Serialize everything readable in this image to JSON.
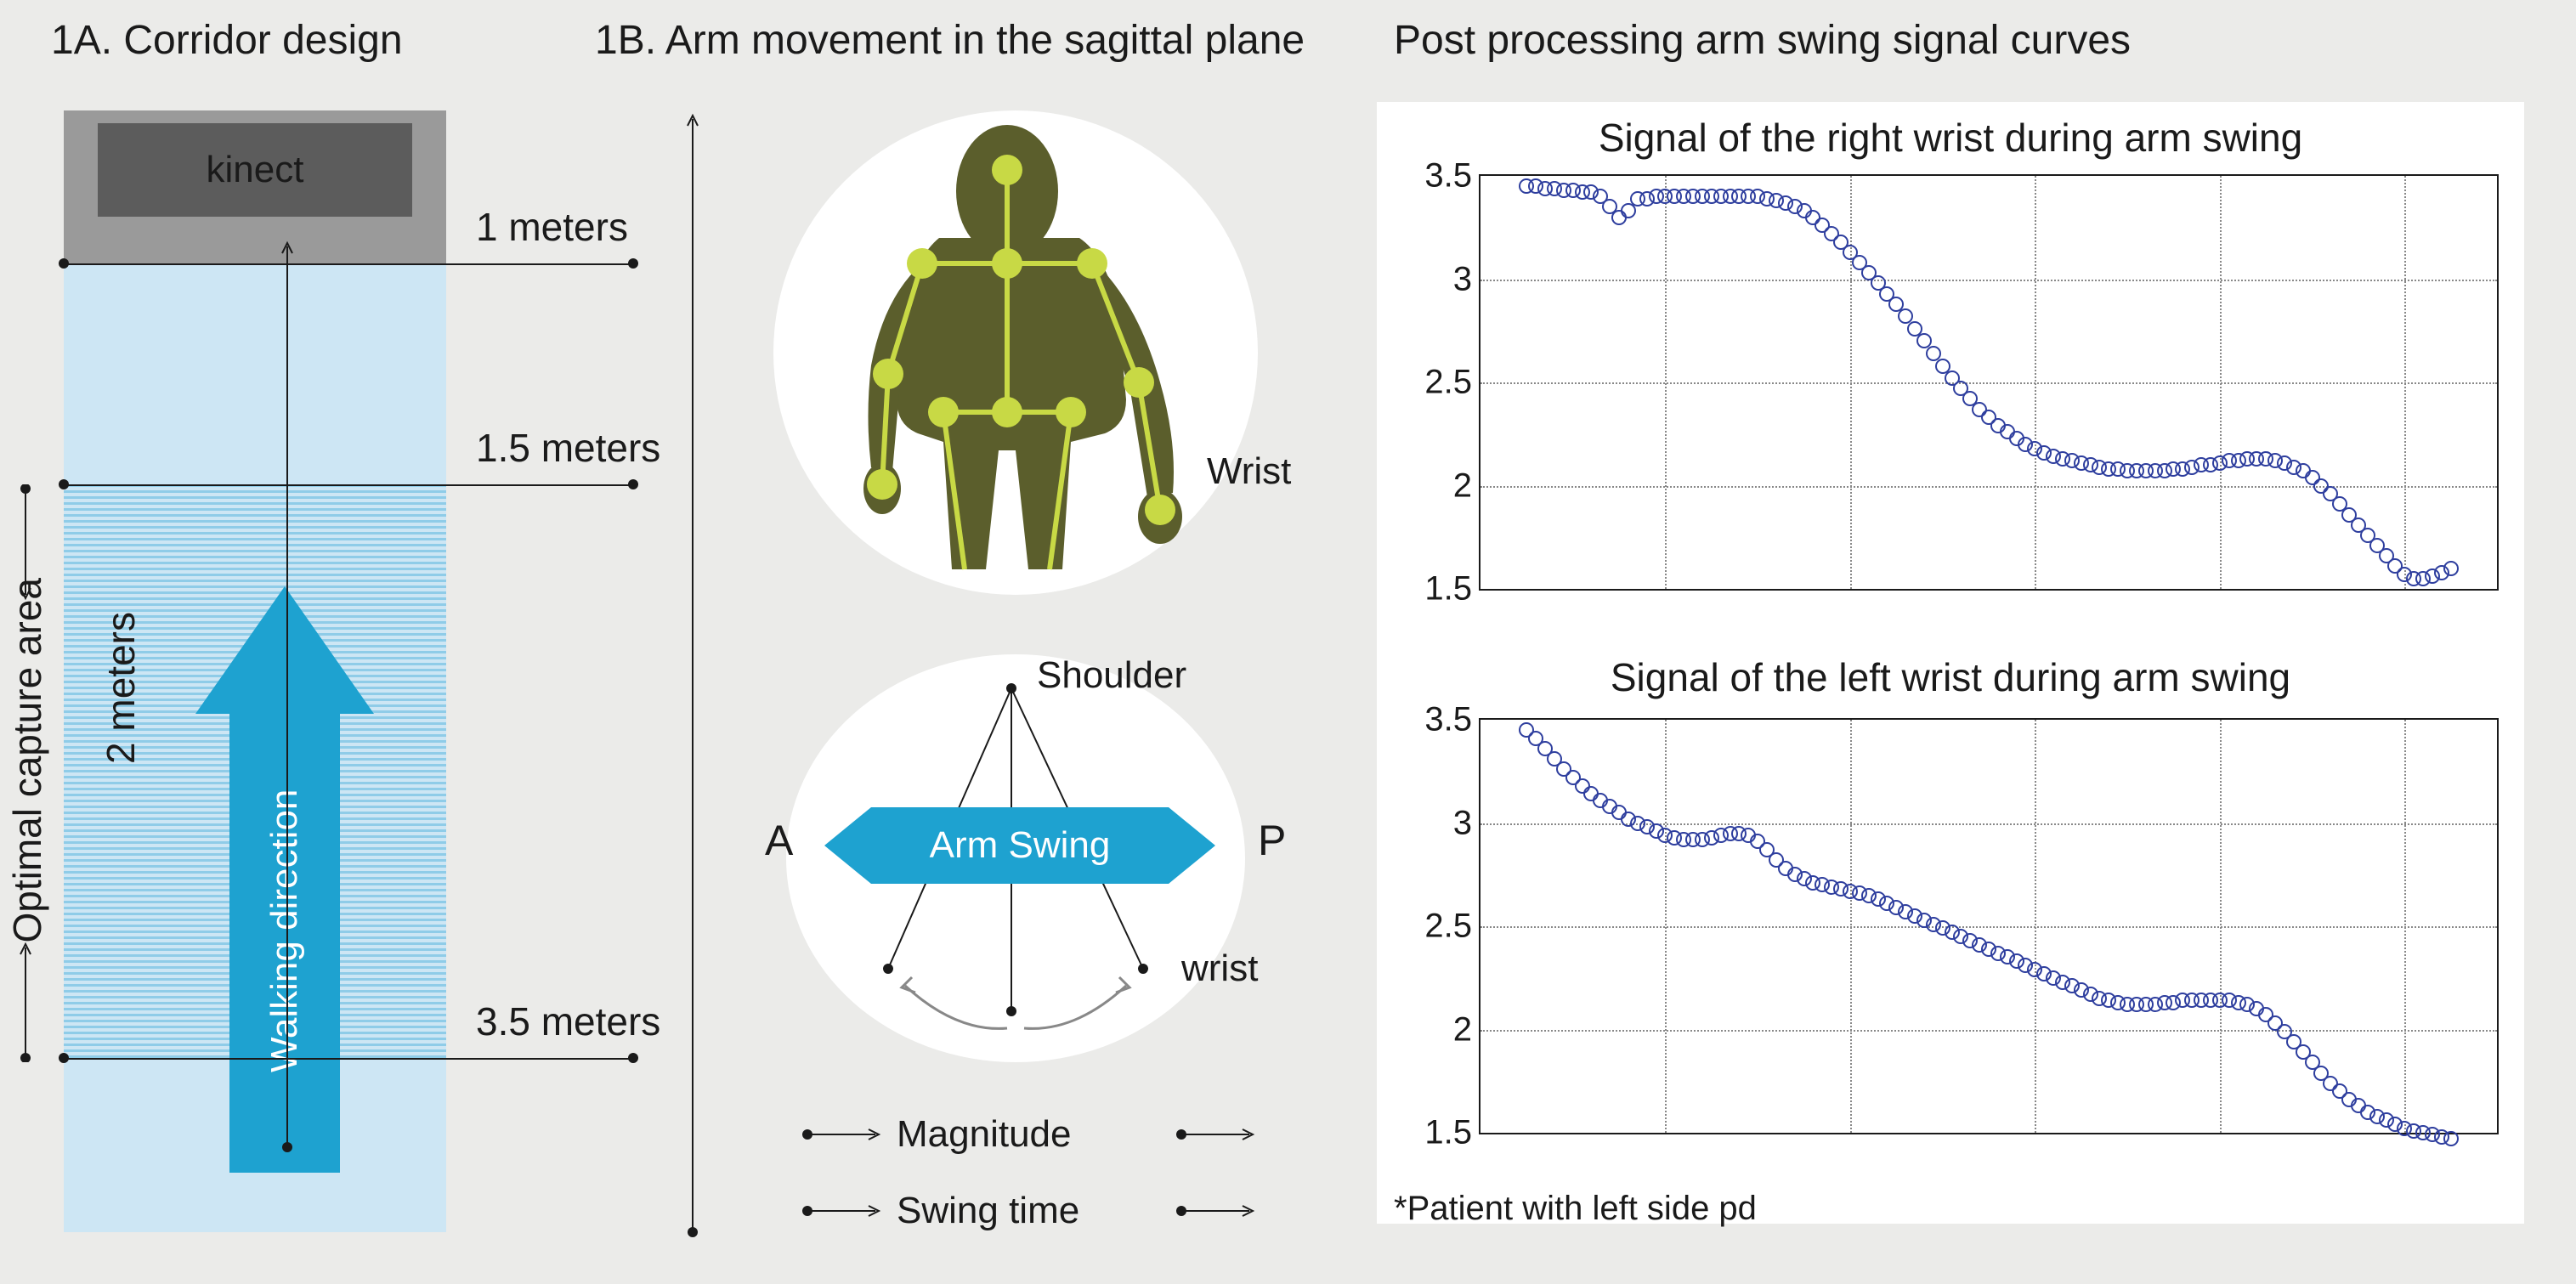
{
  "titles": {
    "a": "1A. Corridor design",
    "b": "1B. Arm movement in the sagittal plane",
    "c": "Post processing arm swing signal curves"
  },
  "corridor": {
    "kinect": "kinect",
    "walking": "Walking direction",
    "m1": "1 meters",
    "m15": "1.5 meters",
    "m2": "2 meters",
    "m35": "3.5 meters",
    "optimal": "Optimal capture area",
    "kinect_outer_color": "#9a9a9a",
    "kinect_inner_color": "#5c5c5c",
    "corridor_color": "#cde6f4",
    "hatch_color": "#8fcce8",
    "accent": "#1ea2d0"
  },
  "panelB": {
    "wrist": "Wrist",
    "shoulder": "Shoulder",
    "A": "A",
    "P": "P",
    "arm_swing": "Arm Swing",
    "wrist2": "wrist",
    "magnitude": "Magnitude",
    "swing_time": "Swing time",
    "body_color": "#5b5e2c",
    "joint_color": "#c8d945"
  },
  "charts": {
    "right": {
      "title": "Signal of the right wrist during arm swing",
      "yticks": [
        "1.5",
        "2",
        "2.5",
        "3",
        "3.5"
      ],
      "ylim": [
        1.5,
        3.5
      ],
      "xlim": [
        0,
        110
      ],
      "points": [
        [
          5,
          3.45
        ],
        [
          6,
          3.45
        ],
        [
          7,
          3.44
        ],
        [
          8,
          3.44
        ],
        [
          9,
          3.43
        ],
        [
          10,
          3.43
        ],
        [
          11,
          3.42
        ],
        [
          12,
          3.42
        ],
        [
          13,
          3.4
        ],
        [
          14,
          3.35
        ],
        [
          15,
          3.3
        ],
        [
          16,
          3.33
        ],
        [
          17,
          3.39
        ],
        [
          18,
          3.39
        ],
        [
          19,
          3.4
        ],
        [
          20,
          3.4
        ],
        [
          21,
          3.4
        ],
        [
          22,
          3.4
        ],
        [
          23,
          3.4
        ],
        [
          24,
          3.4
        ],
        [
          25,
          3.4
        ],
        [
          26,
          3.4
        ],
        [
          27,
          3.4
        ],
        [
          28,
          3.4
        ],
        [
          29,
          3.4
        ],
        [
          30,
          3.4
        ],
        [
          31,
          3.39
        ],
        [
          32,
          3.38
        ],
        [
          33,
          3.37
        ],
        [
          34,
          3.35
        ],
        [
          35,
          3.33
        ],
        [
          36,
          3.3
        ],
        [
          37,
          3.26
        ],
        [
          38,
          3.22
        ],
        [
          39,
          3.18
        ],
        [
          40,
          3.13
        ],
        [
          41,
          3.08
        ],
        [
          42,
          3.03
        ],
        [
          43,
          2.98
        ],
        [
          44,
          2.93
        ],
        [
          45,
          2.88
        ],
        [
          46,
          2.82
        ],
        [
          47,
          2.76
        ],
        [
          48,
          2.7
        ],
        [
          49,
          2.64
        ],
        [
          50,
          2.58
        ],
        [
          51,
          2.52
        ],
        [
          52,
          2.47
        ],
        [
          53,
          2.42
        ],
        [
          54,
          2.37
        ],
        [
          55,
          2.33
        ],
        [
          56,
          2.29
        ],
        [
          57,
          2.26
        ],
        [
          58,
          2.23
        ],
        [
          59,
          2.2
        ],
        [
          60,
          2.18
        ],
        [
          61,
          2.16
        ],
        [
          62,
          2.14
        ],
        [
          63,
          2.13
        ],
        [
          64,
          2.12
        ],
        [
          65,
          2.11
        ],
        [
          66,
          2.1
        ],
        [
          67,
          2.09
        ],
        [
          68,
          2.08
        ],
        [
          69,
          2.08
        ],
        [
          70,
          2.07
        ],
        [
          71,
          2.07
        ],
        [
          72,
          2.07
        ],
        [
          73,
          2.07
        ],
        [
          74,
          2.07
        ],
        [
          75,
          2.08
        ],
        [
          76,
          2.08
        ],
        [
          77,
          2.09
        ],
        [
          78,
          2.1
        ],
        [
          79,
          2.1
        ],
        [
          80,
          2.11
        ],
        [
          81,
          2.12
        ],
        [
          82,
          2.12
        ],
        [
          83,
          2.13
        ],
        [
          84,
          2.13
        ],
        [
          85,
          2.13
        ],
        [
          86,
          2.12
        ],
        [
          87,
          2.11
        ],
        [
          88,
          2.09
        ],
        [
          89,
          2.07
        ],
        [
          90,
          2.04
        ],
        [
          91,
          2.0
        ],
        [
          92,
          1.96
        ],
        [
          93,
          1.91
        ],
        [
          94,
          1.86
        ],
        [
          95,
          1.81
        ],
        [
          96,
          1.76
        ],
        [
          97,
          1.71
        ],
        [
          98,
          1.66
        ],
        [
          99,
          1.61
        ],
        [
          100,
          1.57
        ],
        [
          101,
          1.55
        ],
        [
          102,
          1.55
        ],
        [
          103,
          1.56
        ],
        [
          104,
          1.58
        ],
        [
          105,
          1.6
        ]
      ]
    },
    "left": {
      "title": "Signal of the left wrist during arm swing",
      "yticks": [
        "1.5",
        "2",
        "2.5",
        "3",
        "3.5"
      ],
      "ylim": [
        1.5,
        3.5
      ],
      "xlim": [
        0,
        110
      ],
      "points": [
        [
          5,
          3.45
        ],
        [
          6,
          3.41
        ],
        [
          7,
          3.36
        ],
        [
          8,
          3.31
        ],
        [
          9,
          3.26
        ],
        [
          10,
          3.22
        ],
        [
          11,
          3.18
        ],
        [
          12,
          3.14
        ],
        [
          13,
          3.11
        ],
        [
          14,
          3.08
        ],
        [
          15,
          3.05
        ],
        [
          16,
          3.02
        ],
        [
          17,
          3.0
        ],
        [
          18,
          2.98
        ],
        [
          19,
          2.96
        ],
        [
          20,
          2.94
        ],
        [
          21,
          2.93
        ],
        [
          22,
          2.92
        ],
        [
          23,
          2.92
        ],
        [
          24,
          2.92
        ],
        [
          25,
          2.93
        ],
        [
          26,
          2.94
        ],
        [
          27,
          2.95
        ],
        [
          28,
          2.95
        ],
        [
          29,
          2.94
        ],
        [
          30,
          2.91
        ],
        [
          31,
          2.87
        ],
        [
          32,
          2.82
        ],
        [
          33,
          2.78
        ],
        [
          34,
          2.75
        ],
        [
          35,
          2.73
        ],
        [
          36,
          2.71
        ],
        [
          37,
          2.7
        ],
        [
          38,
          2.69
        ],
        [
          39,
          2.68
        ],
        [
          40,
          2.67
        ],
        [
          41,
          2.66
        ],
        [
          42,
          2.65
        ],
        [
          43,
          2.63
        ],
        [
          44,
          2.61
        ],
        [
          45,
          2.59
        ],
        [
          46,
          2.57
        ],
        [
          47,
          2.55
        ],
        [
          48,
          2.53
        ],
        [
          49,
          2.51
        ],
        [
          50,
          2.49
        ],
        [
          51,
          2.47
        ],
        [
          52,
          2.45
        ],
        [
          53,
          2.43
        ],
        [
          54,
          2.41
        ],
        [
          55,
          2.39
        ],
        [
          56,
          2.37
        ],
        [
          57,
          2.35
        ],
        [
          58,
          2.33
        ],
        [
          59,
          2.31
        ],
        [
          60,
          2.29
        ],
        [
          61,
          2.27
        ],
        [
          62,
          2.25
        ],
        [
          63,
          2.23
        ],
        [
          64,
          2.21
        ],
        [
          65,
          2.19
        ],
        [
          66,
          2.17
        ],
        [
          67,
          2.15
        ],
        [
          68,
          2.14
        ],
        [
          69,
          2.13
        ],
        [
          70,
          2.12
        ],
        [
          71,
          2.12
        ],
        [
          72,
          2.12
        ],
        [
          73,
          2.12
        ],
        [
          74,
          2.13
        ],
        [
          75,
          2.13
        ],
        [
          76,
          2.14
        ],
        [
          77,
          2.14
        ],
        [
          78,
          2.14
        ],
        [
          79,
          2.14
        ],
        [
          80,
          2.14
        ],
        [
          81,
          2.14
        ],
        [
          82,
          2.13
        ],
        [
          83,
          2.12
        ],
        [
          84,
          2.1
        ],
        [
          85,
          2.07
        ],
        [
          86,
          2.03
        ],
        [
          87,
          1.99
        ],
        [
          88,
          1.94
        ],
        [
          89,
          1.89
        ],
        [
          90,
          1.84
        ],
        [
          91,
          1.79
        ],
        [
          92,
          1.74
        ],
        [
          93,
          1.7
        ],
        [
          94,
          1.66
        ],
        [
          95,
          1.63
        ],
        [
          96,
          1.6
        ],
        [
          97,
          1.58
        ],
        [
          98,
          1.56
        ],
        [
          99,
          1.54
        ],
        [
          100,
          1.52
        ],
        [
          101,
          1.51
        ],
        [
          102,
          1.5
        ],
        [
          103,
          1.49
        ],
        [
          104,
          1.48
        ],
        [
          105,
          1.47
        ]
      ]
    },
    "marker_color": "#2e3e9e",
    "grid_color": "#888888",
    "bg_color": "#ffffff"
  },
  "footnote": "*Patient with left side pd"
}
